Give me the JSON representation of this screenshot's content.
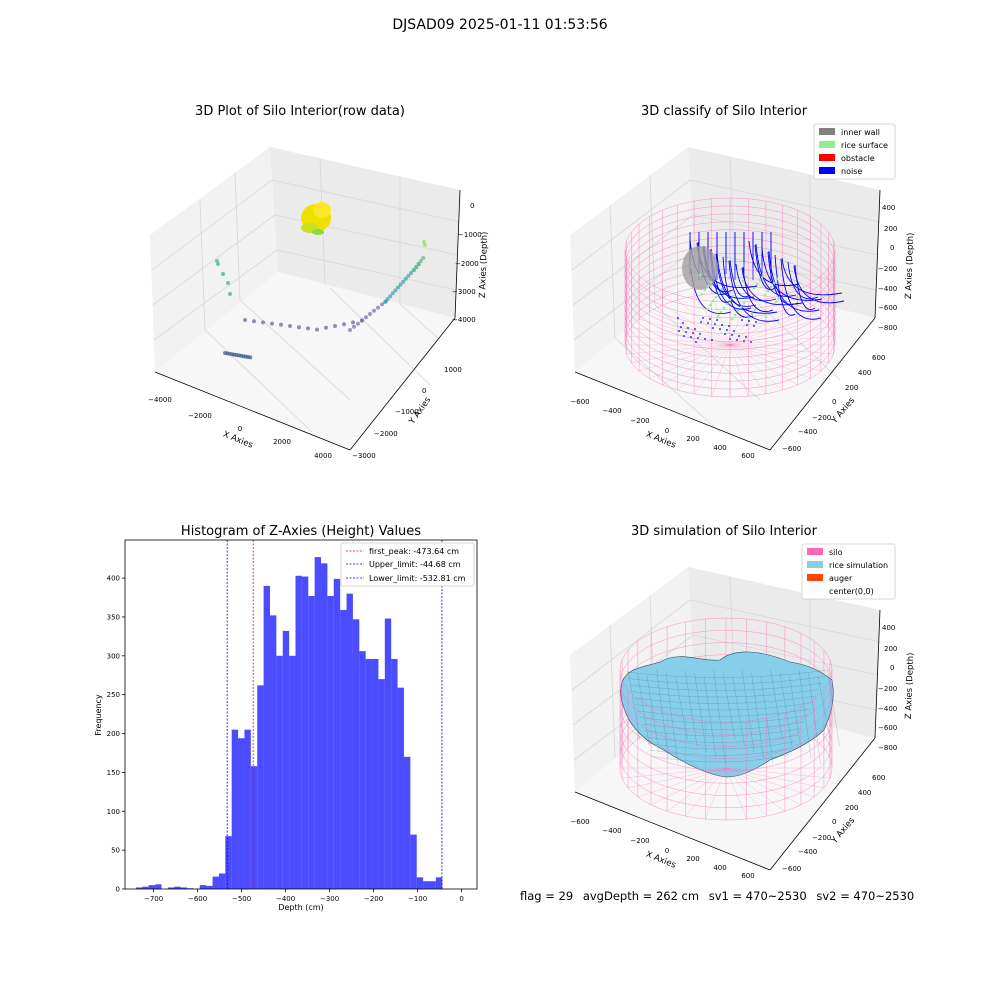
{
  "figure": {
    "suptitle": "DJSAD09 2025-01-11 01:53:56"
  },
  "panels": {
    "raw": {
      "title": "3D Plot of Silo Interior(row data)",
      "xlabel": "X Axies",
      "ylabel": "Y Axies",
      "zlabel": "Z Axies (Depth)",
      "xticks": [
        "−4000",
        "−2000",
        "0",
        "2000",
        "4000"
      ],
      "yticks": [
        "1000",
        "0",
        "−1000",
        "−2000",
        "−3000"
      ],
      "zticks": [
        "0",
        "−1000",
        "−2000",
        "−3000",
        "−4000"
      ]
    },
    "classify": {
      "title": "3D classify of Silo Interior",
      "xlabel": "X Axies",
      "ylabel": "Y Axies",
      "zlabel": "Z Axies (Depth)",
      "xticks": [
        "−600",
        "−400",
        "−200",
        "0",
        "200",
        "400",
        "600"
      ],
      "yticks": [
        "600",
        "400",
        "200",
        "0",
        "−200",
        "−400",
        "−600"
      ],
      "zticks": [
        "400",
        "200",
        "0",
        "−200",
        "−400",
        "−600",
        "−800"
      ],
      "legend": [
        {
          "label": "inner wall",
          "color": "#808080"
        },
        {
          "label": "rice surface",
          "color": "#90ee90"
        },
        {
          "label": "obstacle",
          "color": "#ff0000"
        },
        {
          "label": "noise",
          "color": "#0000ff"
        }
      ]
    },
    "simulation": {
      "title": "3D simulation of Silo Interior",
      "xlabel": "X Axies",
      "ylabel": "Y Axies",
      "zlabel": "Z Axies (Depth)",
      "xticks": [
        "−600",
        "−400",
        "−200",
        "0",
        "200",
        "400",
        "600"
      ],
      "yticks": [
        "600",
        "400",
        "200",
        "0",
        "−200",
        "−400",
        "−600"
      ],
      "zticks": [
        "400",
        "200",
        "0",
        "−200",
        "−400",
        "−600",
        "−800"
      ],
      "legend": [
        {
          "label": "silo",
          "color": "#ff69b4"
        },
        {
          "label": "rice simulation",
          "color": "#87ceeb"
        },
        {
          "label": "auger",
          "color": "#ff4500"
        },
        {
          "label": "center(0,0)",
          "color": "#ffffff"
        }
      ]
    }
  },
  "chart_data": {
    "type": "bar",
    "title": "Histogram of Z-Axies (Height) Values",
    "xlabel": "Depth (cm)",
    "ylabel": "Frequency",
    "xlim": [
      -765,
      35
    ],
    "ylim": [
      0,
      449
    ],
    "xticks": [
      -700,
      -600,
      -500,
      -400,
      -300,
      -200,
      -100,
      0
    ],
    "xtick_labels": [
      "−700",
      "−600",
      "−500",
      "−400",
      "−300",
      "−200",
      "−100",
      "0"
    ],
    "yticks": [
      0,
      50,
      100,
      150,
      200,
      250,
      300,
      350,
      400
    ],
    "bin_width": 14.5,
    "bin_start": -740,
    "bar_color": "#0000ff",
    "values": [
      2,
      3,
      5,
      6,
      0,
      2,
      3,
      2,
      1,
      0,
      5,
      4,
      16,
      20,
      68,
      205,
      194,
      205,
      158,
      262,
      390,
      352,
      300,
      332,
      300,
      403,
      402,
      377,
      427,
      419,
      377,
      399,
      359,
      380,
      347,
      306,
      296,
      296,
      270,
      348,
      296,
      259,
      170,
      70,
      15,
      10,
      10,
      15
    ],
    "lines": [
      {
        "label": "first_peak: -473.64 cm",
        "x": -473.64,
        "color": "#ff0000"
      },
      {
        "label": "Upper_limit: -44.68 cm",
        "x": -44.68,
        "color": "#0000ff"
      },
      {
        "label": "Lower_limit: -532.81 cm",
        "x": -532.81,
        "color": "#0000ff"
      }
    ],
    "legend_position": "upper right"
  },
  "status": {
    "flag": "flag = 29",
    "avg": "avgDepth = 262 cm",
    "sv1": "sv1 = 470~2530",
    "sv2": "sv2 = 470~2530"
  }
}
